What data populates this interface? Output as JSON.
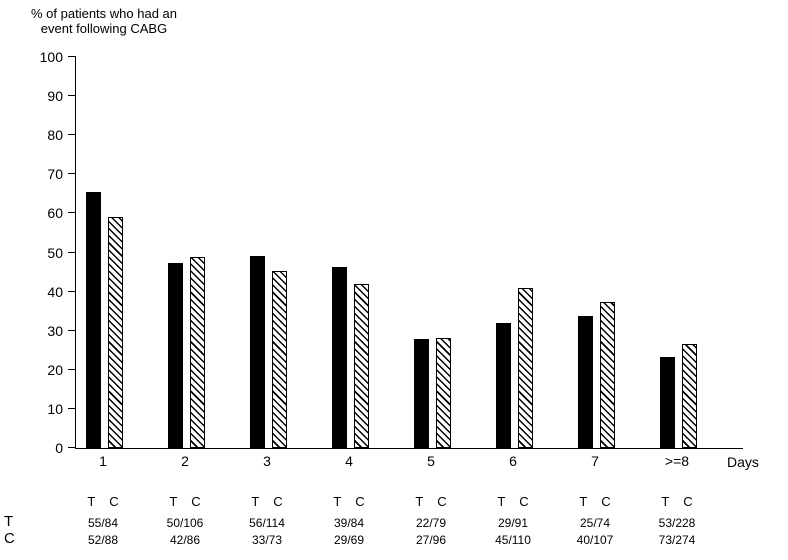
{
  "chart_data": {
    "type": "bar",
    "title": "% of patients who had an\nevent following CABG",
    "xlabel": "Days",
    "ylabel": "% of patients who had an event following CABG",
    "ylim": [
      0,
      100
    ],
    "yticks": [
      0,
      10,
      20,
      30,
      40,
      50,
      60,
      70,
      80,
      90,
      100
    ],
    "grid": false,
    "legend_position": "below-axis",
    "categories": [
      "1",
      "2",
      "3",
      "4",
      "5",
      "6",
      "7",
      ">=8"
    ],
    "series": [
      {
        "name": "T",
        "style": "solid",
        "values": [
          65.5,
          47.2,
          49.1,
          46.4,
          27.8,
          31.9,
          33.8,
          23.2
        ],
        "fractions": [
          "55/84",
          "50/106",
          "56/114",
          "39/84",
          "22/79",
          "29/91",
          "25/74",
          "53/228"
        ]
      },
      {
        "name": "C",
        "style": "hatched",
        "values": [
          59.1,
          48.8,
          45.2,
          42.0,
          28.1,
          40.9,
          37.4,
          26.6
        ],
        "fractions": [
          "52/88",
          "42/86",
          "33/73",
          "29/69",
          "27/96",
          "45/110",
          "40/107",
          "73/274"
        ]
      }
    ]
  },
  "colors": {
    "background": "#ffffff",
    "axis": "#000000",
    "bar_solid": "#000000",
    "hatch_stroke": "#000000"
  }
}
